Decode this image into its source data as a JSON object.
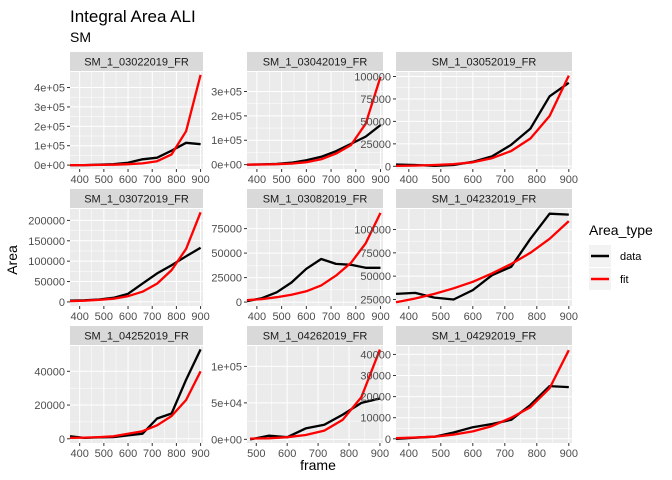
{
  "title": "Integral Area ALI",
  "subtitle": "SM",
  "xlabel": "frame",
  "ylabel": "Area",
  "legend": {
    "title": "Area_type",
    "items": [
      {
        "label": "data",
        "color": "#000000"
      },
      {
        "label": "fit",
        "color": "#ff0000"
      }
    ]
  },
  "colors": {
    "data": "#000000",
    "fit": "#ff0000",
    "panel_bg": "#ebebeb",
    "strip_bg": "#d9d9d9",
    "grid": "#ffffff"
  },
  "chart_data": {
    "type": "line",
    "grid": true,
    "legend_position": "right",
    "panels": [
      {
        "strip": "SM_1_03022019_FR",
        "xlim": [
          360,
          910
        ],
        "ylim": [
          -20000,
          480000
        ],
        "xticks": [
          400,
          500,
          600,
          700,
          800,
          900
        ],
        "xtick_labels": [
          "400",
          "500",
          "600",
          "700",
          "800",
          "900"
        ],
        "yticks": [
          0,
          100000,
          200000,
          300000,
          400000
        ],
        "ytick_labels": [
          "0e+00",
          "1e+05",
          "2e+05",
          "3e+05",
          "4e+05"
        ],
        "series": [
          {
            "name": "data",
            "x": [
              360,
              420,
              480,
              540,
              600,
              660,
              720,
              780,
              840,
              900
            ],
            "y": [
              0,
              0,
              2000,
              5000,
              12000,
              30000,
              38000,
              75000,
              115000,
              108000
            ]
          },
          {
            "name": "fit",
            "x": [
              360,
              420,
              480,
              540,
              600,
              660,
              720,
              780,
              840,
              900
            ],
            "y": [
              0,
              300,
              900,
              2000,
              4500,
              9000,
              20000,
              55000,
              175000,
              465000
            ]
          }
        ]
      },
      {
        "strip": "SM_1_03042019_FR",
        "xlim": [
          360,
          910
        ],
        "ylim": [
          -18000,
          380000
        ],
        "xticks": [
          400,
          500,
          600,
          700,
          800,
          900
        ],
        "xtick_labels": [
          "400",
          "500",
          "600",
          "700",
          "800",
          "900"
        ],
        "yticks": [
          0,
          100000,
          200000,
          300000
        ],
        "ytick_labels": [
          "0e+00",
          "1e+05",
          "2e+05",
          "3e+05"
        ],
        "series": [
          {
            "name": "data",
            "x": [
              360,
              420,
              480,
              540,
              600,
              660,
              720,
              780,
              840,
              900
            ],
            "y": [
              0,
              1000,
              3000,
              8000,
              18000,
              32000,
              55000,
              85000,
              115000,
              162000
            ]
          },
          {
            "name": "fit",
            "x": [
              360,
              420,
              480,
              540,
              600,
              660,
              720,
              780,
              840,
              900
            ],
            "y": [
              0,
              500,
              1500,
              4000,
              10000,
              22000,
              45000,
              80000,
              168000,
              360000
            ]
          }
        ]
      },
      {
        "strip": "SM_1_03052019_FR",
        "xlim": [
          360,
          910
        ],
        "ylim": [
          -3000,
          105000
        ],
        "xticks": [
          400,
          500,
          600,
          700,
          800,
          900
        ],
        "xtick_labels": [
          "400",
          "500",
          "600",
          "700",
          "800",
          "900"
        ],
        "yticks": [
          0,
          25000,
          50000,
          75000,
          100000
        ],
        "ytick_labels": [
          "0",
          "25000",
          "50000",
          "75000",
          "100000"
        ],
        "series": [
          {
            "name": "data",
            "x": [
              360,
              420,
              480,
              540,
              600,
              660,
              720,
              780,
              840,
              900
            ],
            "y": [
              2000,
              1500,
              500,
              1500,
              5000,
              11000,
              24000,
              42000,
              78000,
              93000
            ]
          },
          {
            "name": "fit",
            "x": [
              360,
              420,
              480,
              540,
              600,
              660,
              720,
              780,
              840,
              900
            ],
            "y": [
              500,
              800,
              1400,
              2500,
              4500,
              9000,
              17000,
              31000,
              56000,
              101000
            ]
          }
        ]
      },
      {
        "strip": "SM_1_03072019_FR",
        "xlim": [
          360,
          910
        ],
        "ylim": [
          -10000,
          228000
        ],
        "xticks": [
          400,
          500,
          600,
          700,
          800,
          900
        ],
        "xtick_labels": [
          "400",
          "500",
          "600",
          "700",
          "800",
          "900"
        ],
        "yticks": [
          0,
          50000,
          100000,
          150000,
          200000
        ],
        "ytick_labels": [
          "0",
          "50000",
          "100000",
          "150000",
          "200000"
        ],
        "series": [
          {
            "name": "data",
            "x": [
              360,
              420,
              480,
              540,
              600,
              660,
              720,
              780,
              840,
              900
            ],
            "y": [
              3000,
              4000,
              6000,
              10000,
              20000,
              45000,
              70000,
              90000,
              112000,
              133000
            ]
          },
          {
            "name": "fit",
            "x": [
              360,
              420,
              480,
              540,
              600,
              660,
              720,
              780,
              840,
              900
            ],
            "y": [
              2000,
              3000,
              5000,
              8000,
              14000,
              25000,
              45000,
              78000,
              130000,
              220000
            ]
          }
        ]
      },
      {
        "strip": "SM_1_03082019_FR",
        "xlim": [
          360,
          910
        ],
        "ylim": [
          -4000,
          95000
        ],
        "xticks": [
          400,
          500,
          600,
          700,
          800,
          900
        ],
        "xtick_labels": [
          "400",
          "500",
          "600",
          "700",
          "800",
          "900"
        ],
        "yticks": [
          0,
          25000,
          50000,
          75000
        ],
        "ytick_labels": [
          "0",
          "25000",
          "50000",
          "75000"
        ],
        "series": [
          {
            "name": "data",
            "x": [
              360,
              420,
              480,
              540,
              600,
              660,
              720,
              780,
              840,
              900
            ],
            "y": [
              1000,
              4000,
              10000,
              20000,
              34000,
              44000,
              39000,
              38000,
              35000,
              35000
            ]
          },
          {
            "name": "fit",
            "x": [
              360,
              420,
              480,
              540,
              600,
              660,
              720,
              780,
              840,
              900
            ],
            "y": [
              2000,
              3000,
              5000,
              7500,
              11000,
              17000,
              27000,
              40000,
              60000,
              91000
            ]
          }
        ]
      },
      {
        "strip": "SM_1_04232019_FR",
        "xlim": [
          360,
          910
        ],
        "ylim": [
          18000,
          122000
        ],
        "xticks": [
          400,
          500,
          600,
          700,
          800,
          900
        ],
        "xtick_labels": [
          "400",
          "500",
          "600",
          "700",
          "800",
          "900"
        ],
        "yticks": [
          25000,
          50000,
          75000,
          100000
        ],
        "ytick_labels": [
          "25000",
          "50000",
          "75000",
          "100000"
        ],
        "series": [
          {
            "name": "data",
            "x": [
              360,
              420,
              480,
              540,
              600,
              660,
              720,
              780,
              840,
              900
            ],
            "y": [
              31000,
              32000,
              27000,
              25000,
              35000,
              51000,
              60000,
              90000,
              117000,
              116000
            ]
          },
          {
            "name": "fit",
            "x": [
              360,
              420,
              480,
              540,
              600,
              660,
              720,
              780,
              840,
              900
            ],
            "y": [
              22000,
              26000,
              31000,
              37000,
              44000,
              53000,
              63000,
              75000,
              90000,
              109000
            ]
          }
        ]
      },
      {
        "strip": "SM_1_04252019_FR",
        "xlim": [
          360,
          910
        ],
        "ylim": [
          -2500,
          55000
        ],
        "xticks": [
          400,
          500,
          600,
          700,
          800,
          900
        ],
        "xtick_labels": [
          "400",
          "500",
          "600",
          "700",
          "800",
          "900"
        ],
        "yticks": [
          0,
          20000,
          40000
        ],
        "ytick_labels": [
          "0",
          "20000",
          "40000"
        ],
        "series": [
          {
            "name": "data",
            "x": [
              360,
              420,
              480,
              540,
              600,
              660,
              720,
              780,
              840,
              900
            ],
            "y": [
              1500,
              500,
              800,
              1000,
              2000,
              3000,
              12000,
              15000,
              35000,
              53000
            ]
          },
          {
            "name": "fit",
            "x": [
              360,
              420,
              480,
              540,
              600,
              660,
              720,
              780,
              840,
              900
            ],
            "y": [
              500,
              700,
              1000,
              1500,
              3000,
              4500,
              8000,
              13500,
              23000,
              40000
            ]
          }
        ]
      },
      {
        "strip": "SM_1_04262019_FR",
        "xlim": [
          470,
          910
        ],
        "ylim": [
          -5000,
          128000
        ],
        "xticks": [
          500,
          600,
          700,
          800,
          900
        ],
        "xtick_labels": [
          "500",
          "600",
          "700",
          "800",
          "900"
        ],
        "yticks": [
          0,
          50000,
          100000
        ],
        "ytick_labels": [
          "0e+00",
          "5e+04",
          "1e+05"
        ],
        "series": [
          {
            "name": "data",
            "x": [
              480,
              540,
              600,
              660,
              720,
              780,
              840,
              900
            ],
            "y": [
              0,
              5000,
              3000,
              15000,
              20000,
              34000,
              50000,
              56000
            ]
          },
          {
            "name": "fit",
            "x": [
              480,
              540,
              600,
              660,
              720,
              780,
              840,
              900
            ],
            "y": [
              1000,
              1500,
              3000,
              6000,
              12000,
              27000,
              58000,
              123000
            ]
          }
        ]
      },
      {
        "strip": "SM_1_04292019_FR",
        "xlim": [
          360,
          910
        ],
        "ylim": [
          -2000,
          44000
        ],
        "xticks": [
          400,
          500,
          600,
          700,
          800,
          900
        ],
        "xtick_labels": [
          "400",
          "500",
          "600",
          "700",
          "800",
          "900"
        ],
        "yticks": [
          0,
          10000,
          20000,
          30000,
          40000
        ],
        "ytick_labels": [
          "0",
          "10000",
          "20000",
          "30000",
          "40000"
        ],
        "series": [
          {
            "name": "data",
            "x": [
              360,
              420,
              480,
              540,
              600,
              660,
              720,
              780,
              840,
              900
            ],
            "y": [
              0,
              500,
              1000,
              3000,
              5500,
              7000,
              9000,
              16000,
              25000,
              24500
            ]
          },
          {
            "name": "fit",
            "x": [
              360,
              420,
              480,
              540,
              600,
              660,
              720,
              780,
              840,
              900
            ],
            "y": [
              300,
              600,
              1000,
              2000,
              3500,
              6000,
              10000,
              15000,
              24000,
              42000
            ]
          }
        ]
      }
    ]
  }
}
